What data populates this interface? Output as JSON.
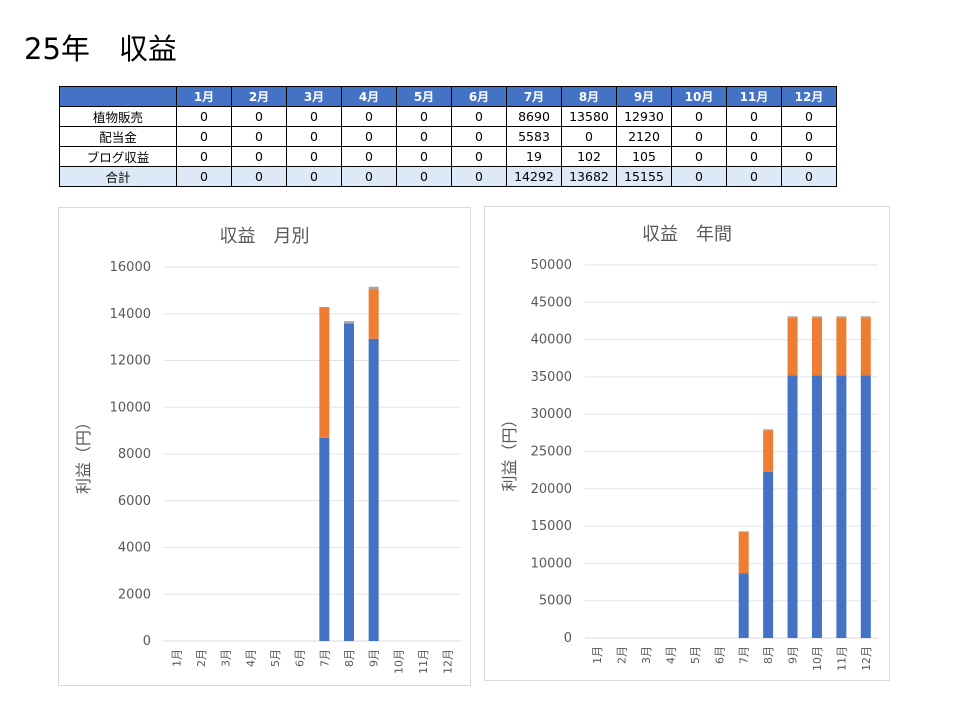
{
  "page": {
    "title": "25年　収益"
  },
  "table": {
    "headers": [
      "",
      "1月",
      "2月",
      "3月",
      "4月",
      "5月",
      "6月",
      "7月",
      "8月",
      "9月",
      "10月",
      "11月",
      "12月"
    ],
    "rows": [
      {
        "label": "植物販売",
        "values": [
          0,
          0,
          0,
          0,
          0,
          0,
          8690,
          13580,
          12930,
          0,
          0,
          0
        ]
      },
      {
        "label": "配当金",
        "values": [
          0,
          0,
          0,
          0,
          0,
          0,
          5583,
          0,
          2120,
          0,
          0,
          0
        ]
      },
      {
        "label": "ブログ収益",
        "values": [
          0,
          0,
          0,
          0,
          0,
          0,
          19,
          102,
          105,
          0,
          0,
          0
        ]
      },
      {
        "label": "合計",
        "values": [
          0,
          0,
          0,
          0,
          0,
          0,
          14292,
          13682,
          15155,
          0,
          0,
          0
        ]
      }
    ]
  },
  "chart_data": [
    {
      "type": "bar",
      "stacked": true,
      "title": "収益　月別",
      "xlabel": "",
      "ylabel": "利益（円）",
      "categories": [
        "1月",
        "2月",
        "3月",
        "4月",
        "5月",
        "6月",
        "7月",
        "8月",
        "9月",
        "10月",
        "11月",
        "12月"
      ],
      "series": [
        {
          "color": "#4472c4",
          "values": [
            0,
            0,
            0,
            0,
            0,
            0,
            8690,
            13580,
            12930,
            0,
            0,
            0
          ]
        },
        {
          "color": "#ed7d31",
          "values": [
            0,
            0,
            0,
            0,
            0,
            0,
            5583,
            0,
            2120,
            0,
            0,
            0
          ]
        },
        {
          "color": "#a5a5a5",
          "values": [
            0,
            0,
            0,
            0,
            0,
            0,
            19,
            102,
            105,
            0,
            0,
            0
          ]
        }
      ],
      "ylim": [
        0,
        16000
      ],
      "yticks": [
        "0",
        "2000",
        "4000",
        "6000",
        "8000",
        "10000",
        "12000",
        "14000",
        "16000"
      ],
      "grid": true,
      "legend": "none"
    },
    {
      "type": "bar",
      "stacked": true,
      "title": "収益　年間",
      "xlabel": "",
      "ylabel": "利益（円）",
      "categories": [
        "1月",
        "2月",
        "3月",
        "4月",
        "5月",
        "6月",
        "7月",
        "8月",
        "9月",
        "10月",
        "11月",
        "12月"
      ],
      "series": [
        {
          "color": "#4472c4",
          "values": [
            0,
            0,
            0,
            0,
            0,
            0,
            8690,
            22270,
            35200,
            35200,
            35200,
            35200
          ]
        },
        {
          "color": "#ed7d31",
          "values": [
            0,
            0,
            0,
            0,
            0,
            0,
            5583,
            5583,
            7703,
            7703,
            7703,
            7703
          ]
        },
        {
          "color": "#a5a5a5",
          "values": [
            0,
            0,
            0,
            0,
            0,
            0,
            19,
            121,
            226,
            226,
            226,
            226
          ]
        }
      ],
      "ylim": [
        0,
        50000
      ],
      "yticks": [
        "0",
        "5000",
        "10000",
        "15000",
        "20000",
        "25000",
        "30000",
        "35000",
        "40000",
        "45000",
        "50000"
      ],
      "grid": true,
      "legend": "none"
    }
  ]
}
